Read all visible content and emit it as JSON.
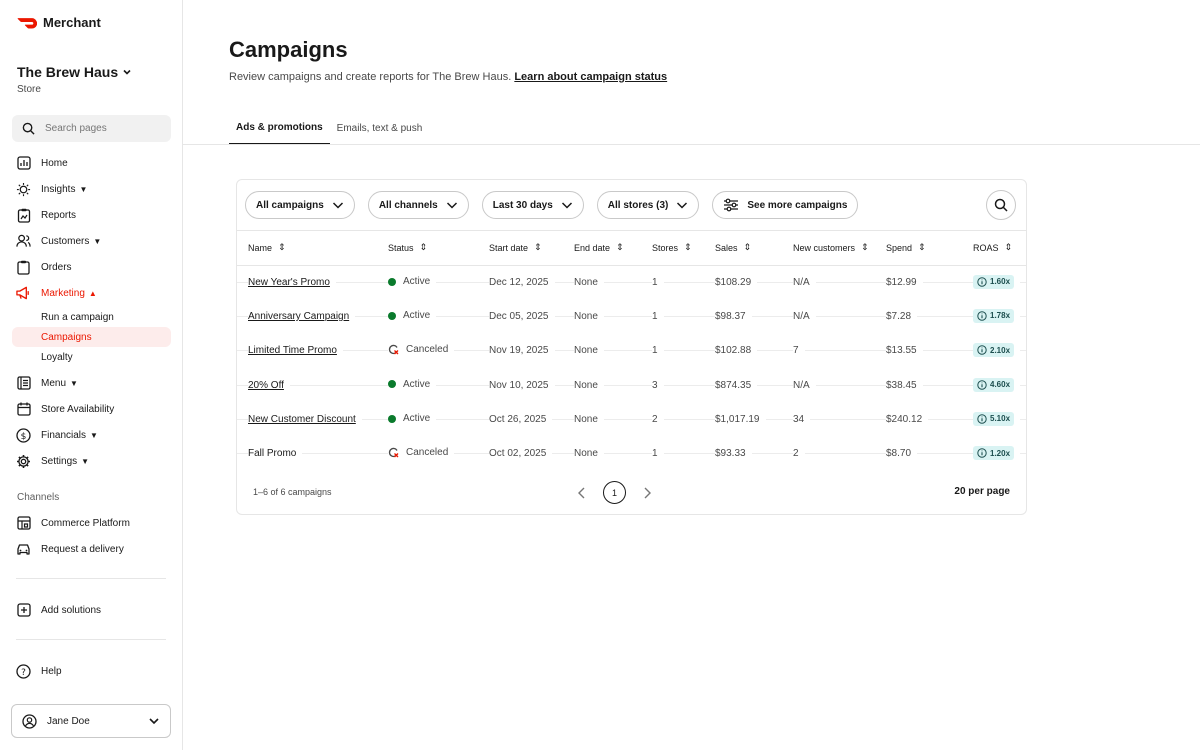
{
  "brand": {
    "name": "Merchant",
    "color": "#eb1700"
  },
  "store": {
    "name": "The Brew Haus",
    "type": "Store"
  },
  "search": {
    "placeholder": "Search pages"
  },
  "nav": {
    "home": "Home",
    "insights": "Insights",
    "reports": "Reports",
    "customers": "Customers",
    "orders": "Orders",
    "marketing": "Marketing",
    "marketing_sub": [
      "Run a campaign",
      "Campaigns",
      "Loyalty"
    ],
    "menu": "Menu",
    "store_availability": "Store Availability",
    "financials": "Financials",
    "settings": "Settings",
    "channels_label": "Channels",
    "commerce_platform": "Commerce Platform",
    "request_delivery": "Request a delivery",
    "add_solutions": "Add solutions",
    "help": "Help"
  },
  "user": {
    "name": "Jane Doe"
  },
  "page": {
    "title": "Campaigns",
    "subtitle": "Review campaigns and create reports for The Brew Haus.",
    "subtitle_link": "Learn about campaign status"
  },
  "tabs": [
    "Ads & promotions",
    "Emails, text & push"
  ],
  "filters": [
    "All campaigns",
    "All channels",
    "Last 30 days",
    "All stores (3)",
    "See more campaigns"
  ],
  "table": {
    "columns": [
      "Name",
      "Status",
      "Start date",
      "End date",
      "Stores",
      "Sales",
      "New customers",
      "Spend",
      "ROAS"
    ],
    "rows": [
      {
        "name": "New Year's Promo",
        "link": true,
        "status": "Active",
        "start": "Dec 12, 2025",
        "end": "None",
        "stores": "1",
        "sales": "$108.29",
        "new_customers": "N/A",
        "spend": "$12.99",
        "roas": "1.60x"
      },
      {
        "name": "Anniversary Campaign",
        "link": true,
        "status": "Active",
        "start": "Dec 05, 2025",
        "end": "None",
        "stores": "1",
        "sales": "$98.37",
        "new_customers": "N/A",
        "spend": "$7.28",
        "roas": "1.78x"
      },
      {
        "name": "Limited Time Promo",
        "link": true,
        "status": "Canceled",
        "start": "Nov 19, 2025",
        "end": "None",
        "stores": "1",
        "sales": "$102.88",
        "new_customers": "7",
        "spend": "$13.55",
        "roas": "2.10x"
      },
      {
        "name": "20% Off",
        "link": true,
        "status": "Active",
        "start": "Nov 10, 2025",
        "end": "None",
        "stores": "3",
        "sales": "$874.35",
        "new_customers": "N/A",
        "spend": "$38.45",
        "roas": "4.60x"
      },
      {
        "name": "New Customer Discount",
        "link": true,
        "status": "Active",
        "start": "Oct 26, 2025",
        "end": "None",
        "stores": "2",
        "sales": "$1,017.19",
        "new_customers": "34",
        "spend": "$240.12",
        "roas": "5.10x"
      },
      {
        "name": "Fall Promo",
        "link": false,
        "status": "Canceled",
        "start": "Oct 02, 2025",
        "end": "None",
        "stores": "1",
        "sales": "$93.33",
        "new_customers": "2",
        "spend": "$8.70",
        "roas": "1.20x"
      }
    ]
  },
  "pagination": {
    "summary": "1–6 of 6 campaigns",
    "current_page": "1",
    "per_page": "20 per page"
  }
}
